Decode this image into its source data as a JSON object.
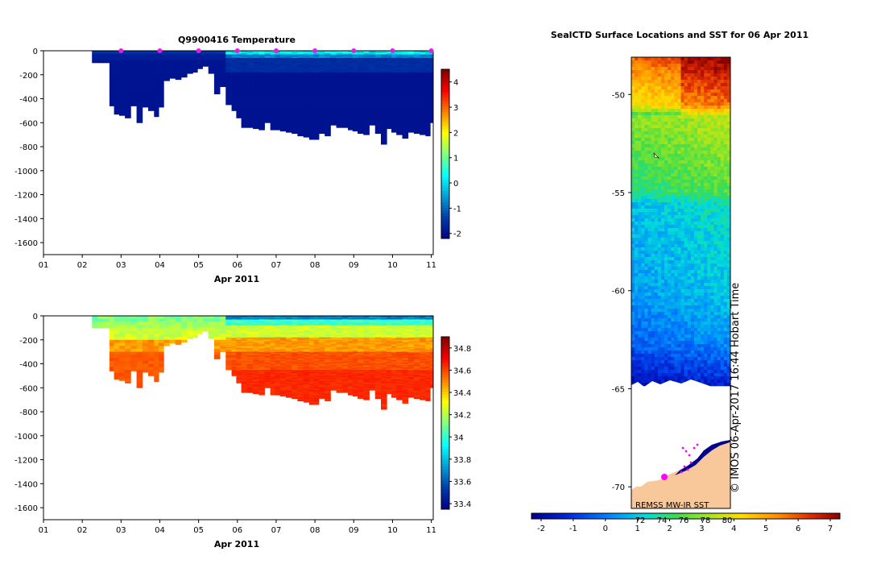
{
  "chart_data": [
    {
      "type": "heatmap",
      "title": "Q9900416  Temperature",
      "variable": "temperature",
      "xlabel": "Apr 2011",
      "x_ticks": [
        "01",
        "02",
        "03",
        "04",
        "05",
        "06",
        "07",
        "08",
        "09",
        "10",
        "11"
      ],
      "xlim": [
        1,
        11.05
      ],
      "y_ticks": [
        0,
        -200,
        -400,
        -600,
        -800,
        -1000,
        -1200,
        -1400,
        -1600
      ],
      "ylim": [
        -1700,
        0
      ],
      "colorbar": {
        "ticks": [
          -2,
          -1,
          0,
          1,
          2,
          3,
          4
        ],
        "range": [
          -2.2,
          4.5
        ]
      },
      "profile_days": [
        2.25,
        2.4,
        2.55,
        2.7,
        2.82,
        2.95,
        3.1,
        3.25,
        3.4,
        3.55,
        3.7,
        3.85,
        3.97,
        4.1,
        4.25,
        4.4,
        4.55,
        4.7,
        4.85,
        4.97,
        5.1,
        5.25,
        5.4,
        5.55,
        5.7,
        5.85,
        5.97,
        6.1,
        6.25,
        6.4,
        6.55,
        6.7,
        6.85,
        6.97,
        7.1,
        7.25,
        7.4,
        7.55,
        7.7,
        7.85,
        7.97,
        8.1,
        8.25,
        8.4,
        8.55,
        8.7,
        8.85,
        8.97,
        9.1,
        9.25,
        9.4,
        9.55,
        9.7,
        9.85,
        9.97,
        10.1,
        10.25,
        10.4,
        10.55,
        10.7,
        10.85,
        10.97
      ],
      "max_depths": [
        -100,
        -100,
        -100,
        -460,
        -530,
        -540,
        -560,
        -460,
        -600,
        -470,
        -500,
        -550,
        -470,
        -250,
        -230,
        -240,
        -220,
        -190,
        -180,
        -150,
        -130,
        -190,
        -360,
        -300,
        -450,
        -500,
        -560,
        -640,
        -640,
        -650,
        -660,
        -600,
        -660,
        -660,
        -670,
        -680,
        -690,
        -710,
        -720,
        -740,
        -740,
        -690,
        -710,
        -620,
        -640,
        -640,
        -660,
        -670,
        -690,
        -700,
        -620,
        -690,
        -780,
        -650,
        -680,
        -700,
        -730,
        -680,
        -690,
        -700,
        -710,
        -600
      ],
      "surface_markers": [
        3,
        4,
        5,
        6,
        7,
        8,
        9,
        10,
        11
      ]
    },
    {
      "type": "heatmap",
      "title": "",
      "variable": "salinity",
      "xlabel": "Apr 2011",
      "x_ticks": [
        "01",
        "02",
        "03",
        "04",
        "05",
        "06",
        "07",
        "08",
        "09",
        "10",
        "11"
      ],
      "xlim": [
        1,
        11.05
      ],
      "y_ticks": [
        0,
        -200,
        -400,
        -600,
        -800,
        -1000,
        -1200,
        -1400,
        -1600
      ],
      "ylim": [
        -1700,
        0
      ],
      "colorbar": {
        "ticks": [
          "33.4",
          "33.6",
          "33.8",
          "34",
          "34.2",
          "34.4",
          "34.6",
          "34.8"
        ],
        "range": [
          33.35,
          34.9
        ]
      }
    },
    {
      "type": "heatmap",
      "title": "SealCTD Surface Locations and SST for 06 Apr 2011",
      "variable": "sea_surface_temperature_map",
      "y_ticks": [
        "-50",
        "-55",
        "-60",
        "-65",
        "-70"
      ],
      "ylim": [
        -71.1,
        -48.1
      ],
      "lon_tick_labels": [
        "72",
        "74",
        "76",
        "78",
        "80"
      ],
      "colorbar": {
        "ticks": [
          "-2",
          "-1",
          "0",
          "1",
          "2",
          "3",
          "4",
          "5",
          "6",
          "7"
        ],
        "range": [
          -2.3,
          7.3
        ]
      },
      "sst_source": "REMSS MW-IR SST",
      "credit": "© IMOS 06-Apr-2017 16:44 Hobart Time"
    }
  ]
}
